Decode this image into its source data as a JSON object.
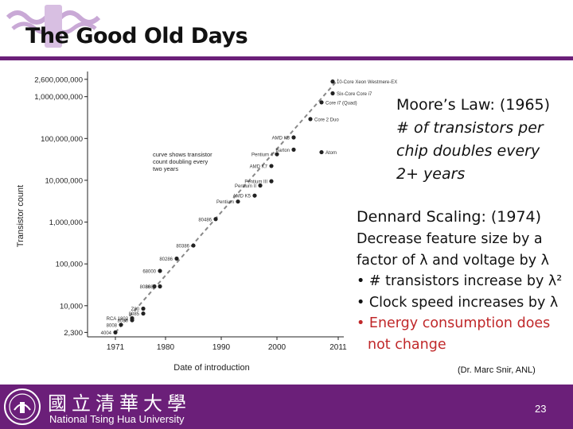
{
  "slide": {
    "title": "The Good Old Days",
    "credit": "(Dr. Marc Snir, ANL)",
    "page_number": "23"
  },
  "moore": {
    "label": "Moore’s Law",
    "year": ": (1965)",
    "line1": "# of transistors per",
    "line2": "chip doubles every",
    "line3": "2+ years"
  },
  "dennard": {
    "label": "Dennard Scaling",
    "year": ": (1974)",
    "line1": "Decrease feature size by a",
    "line2": "factor of λ and voltage by λ",
    "bullet1": "• # transistors increase by λ²",
    "bullet2": "• Clock speed increases by λ",
    "bullet3a": "• Energy consumption does",
    "bullet3b": "not change"
  },
  "footer": {
    "university_cn": "國立清華大學",
    "university_en": "National Tsing Hua University",
    "color": "#6b1f79"
  },
  "chart_data": {
    "type": "scatter",
    "ylabel": "Transistor count",
    "xlabel": "Date of introduction",
    "y_scale": "log",
    "xlim": [
      1966,
      2012
    ],
    "ylim": [
      1800,
      4000000000
    ],
    "x_ticks": [
      {
        "value": 1971,
        "label": "1971"
      },
      {
        "value": 1980,
        "label": "1980"
      },
      {
        "value": 1990,
        "label": "1990"
      },
      {
        "value": 2000,
        "label": "2000"
      },
      {
        "value": 2011,
        "label": "2011"
      }
    ],
    "y_ticks": [
      {
        "value": 2600000000,
        "label": "2,600,000,000"
      },
      {
        "value": 1000000000,
        "label": "1,000,000,000"
      },
      {
        "value": 100000000,
        "label": "100,000,000"
      },
      {
        "value": 10000000,
        "label": "10,000,000"
      },
      {
        "value": 1000000,
        "label": "1,000,000"
      },
      {
        "value": 100000,
        "label": "100,000"
      },
      {
        "value": 10000,
        "label": "10,000"
      },
      {
        "value": 2300,
        "label": "2,300"
      }
    ],
    "trend_label": "curve shows transistor count doubling every two years",
    "trend": [
      {
        "x": 1971,
        "y": 2300
      },
      {
        "x": 2011,
        "y": 2600000000
      }
    ],
    "points": [
      {
        "x": 1971,
        "y": 2300,
        "label": "4004"
      },
      {
        "x": 1972,
        "y": 3500,
        "label": "8008"
      },
      {
        "x": 1974,
        "y": 4500,
        "label": "8080"
      },
      {
        "x": 1974,
        "y": 5000,
        "label": "RCA 1802"
      },
      {
        "x": 1976,
        "y": 6500,
        "label": "8085"
      },
      {
        "x": 1976,
        "y": 8500,
        "label": "Z80"
      },
      {
        "x": 1978,
        "y": 29000,
        "label": "8086"
      },
      {
        "x": 1979,
        "y": 29000,
        "label": "8088"
      },
      {
        "x": 1979,
        "y": 68000,
        "label": "68000"
      },
      {
        "x": 1982,
        "y": 134000,
        "label": "80286"
      },
      {
        "x": 1985,
        "y": 275000,
        "label": "80386"
      },
      {
        "x": 1989,
        "y": 1180000,
        "label": "80486"
      },
      {
        "x": 1993,
        "y": 3100000,
        "label": "Pentium"
      },
      {
        "x": 1996,
        "y": 4300000,
        "label": "AMD K5"
      },
      {
        "x": 1997,
        "y": 7500000,
        "label": "Pentium II"
      },
      {
        "x": 1999,
        "y": 9500000,
        "label": "Pentium III"
      },
      {
        "x": 1999,
        "y": 22000000,
        "label": "AMD K7"
      },
      {
        "x": 2000,
        "y": 42000000,
        "label": "Pentium 4"
      },
      {
        "x": 2003,
        "y": 105900000,
        "label": "AMD K8"
      },
      {
        "x": 2003,
        "y": 54000000,
        "label": "Barton"
      },
      {
        "x": 2006,
        "y": 291000000,
        "label": "Core 2 Duo"
      },
      {
        "x": 2008,
        "y": 47000000,
        "label": "Atom"
      },
      {
        "x": 2008,
        "y": 731000000,
        "label": "Core i7 (Quad)"
      },
      {
        "x": 2010,
        "y": 2300000000,
        "label": "10-Core Xeon Westmere-EX"
      },
      {
        "x": 2010,
        "y": 1200000000,
        "label": "Six-Core Core i7"
      }
    ]
  }
}
